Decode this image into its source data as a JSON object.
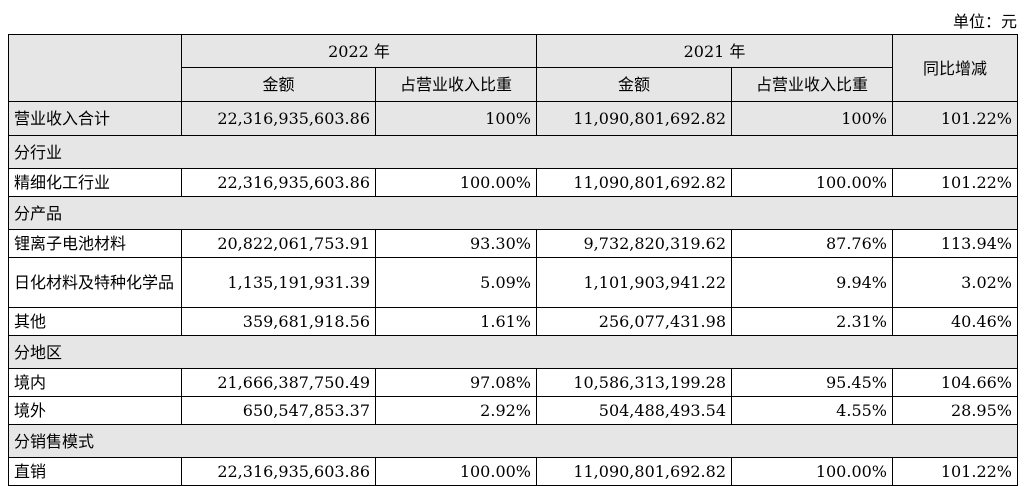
{
  "unit_label": "单位：元",
  "header": {
    "year_2022": "2022 年",
    "year_2021": "2021 年",
    "amount_2022": "金额",
    "ratio_2022": "占营业收入比重",
    "amount_2021": "金额",
    "ratio_2021": "占营业收入比重",
    "yoy": "同比增减"
  },
  "total": {
    "label": "营业收入合计",
    "amount_2022": "22,316,935,603.86",
    "ratio_2022": "100%",
    "amount_2021": "11,090,801,692.82",
    "ratio_2021": "100%",
    "yoy": "101.22%"
  },
  "sections": {
    "industry": "分行业",
    "product": "分产品",
    "region": "分地区",
    "sales_mode": "分销售模式"
  },
  "rows": [
    {
      "label": "精细化工行业",
      "amount_2022": "22,316,935,603.86",
      "ratio_2022": "100.00%",
      "amount_2021": "11,090,801,692.82",
      "ratio_2021": "100.00%",
      "yoy": "101.22%"
    },
    {
      "label": "锂离子电池材料",
      "amount_2022": "20,822,061,753.91",
      "ratio_2022": "93.30%",
      "amount_2021": "9,732,820,319.62",
      "ratio_2021": "87.76%",
      "yoy": "113.94%"
    },
    {
      "label": "日化材料及特种化学品",
      "amount_2022": "1,135,191,931.39",
      "ratio_2022": "5.09%",
      "amount_2021": "1,101,903,941.22",
      "ratio_2021": "9.94%",
      "yoy": "3.02%"
    },
    {
      "label": "其他",
      "amount_2022": "359,681,918.56",
      "ratio_2022": "1.61%",
      "amount_2021": "256,077,431.98",
      "ratio_2021": "2.31%",
      "yoy": "40.46%"
    },
    {
      "label": "境内",
      "amount_2022": "21,666,387,750.49",
      "ratio_2022": "97.08%",
      "amount_2021": "10,586,313,199.28",
      "ratio_2021": "95.45%",
      "yoy": "104.66%"
    },
    {
      "label": "境外",
      "amount_2022": "650,547,853.37",
      "ratio_2022": "2.92%",
      "amount_2021": "504,488,493.54",
      "ratio_2021": "4.55%",
      "yoy": "28.95%"
    },
    {
      "label": "直销",
      "amount_2022": "22,316,935,603.86",
      "ratio_2022": "100.00%",
      "amount_2021": "11,090,801,692.82",
      "ratio_2021": "100.00%",
      "yoy": "101.22%"
    }
  ]
}
